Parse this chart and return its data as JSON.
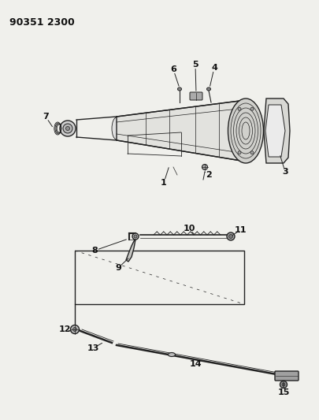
{
  "title_code": "90351 2300",
  "bg_color": "#f0f0ec",
  "line_color": "#222222",
  "label_color": "#111111",
  "figsize": [
    4.05,
    5.33
  ],
  "dpi": 100
}
